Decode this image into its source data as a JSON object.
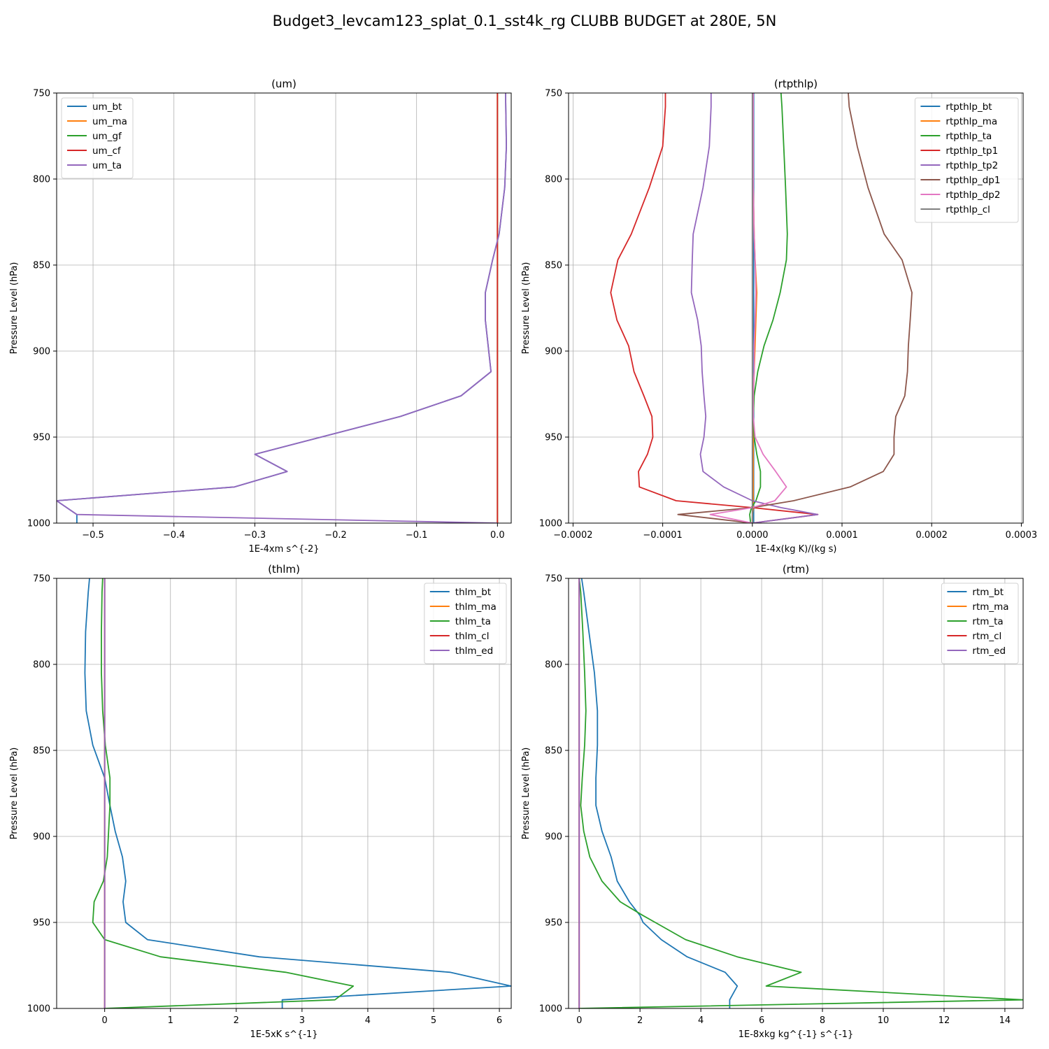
{
  "title": "Budget3_levcam123_splat_0.1_sst4k_rg CLUBB BUDGET at 280E, 5N",
  "chart_data": [
    {
      "type": "line",
      "title": "(um)",
      "xlabel": "1E-4xm s^{-2}",
      "ylabel": "Pressure Level (hPa)",
      "xlim": [
        -0.545,
        0.017
      ],
      "ylim": [
        1000,
        750
      ],
      "xticks": [
        -0.5,
        -0.4,
        -0.3,
        -0.2,
        -0.1,
        0.0
      ],
      "xtick_labels": [
        "−0.5",
        "−0.4",
        "−0.3",
        "−0.2",
        "−0.1",
        "0.0"
      ],
      "yticks": [
        750,
        800,
        850,
        900,
        950,
        1000
      ],
      "ytick_labels": [
        "750",
        "800",
        "850",
        "900",
        "950",
        "1000"
      ],
      "grid": true,
      "legend": "upper left",
      "levels": [
        750,
        781,
        805,
        832,
        847,
        866,
        882,
        912,
        926,
        938,
        960,
        970,
        979,
        987,
        995,
        1000
      ],
      "series": [
        {
          "name": "um_bt",
          "color": "#1f77b4",
          "x": [
            0.01,
            0.011,
            0.009,
            0.002,
            -0.006,
            -0.015,
            -0.015,
            -0.008,
            -0.045,
            -0.12,
            -0.3,
            -0.26,
            -0.325,
            -0.545,
            -0.52,
            -0.52
          ]
        },
        {
          "name": "um_ma",
          "color": "#ff7f0e",
          "x": [
            0,
            0,
            0,
            0,
            0,
            0,
            0,
            0,
            0,
            0,
            0,
            0,
            0,
            0,
            0,
            0
          ]
        },
        {
          "name": "um_gf",
          "color": "#2ca02c",
          "x": [
            0,
            0,
            0,
            0,
            0,
            0,
            0,
            0,
            0,
            0,
            0,
            0,
            0,
            0,
            0,
            0
          ]
        },
        {
          "name": "um_cf",
          "color": "#d62728",
          "x": [
            0,
            0,
            0,
            0,
            0,
            0,
            0,
            0,
            0,
            0,
            0,
            0,
            0,
            0,
            0,
            0
          ]
        },
        {
          "name": "um_ta",
          "color": "#9467bd",
          "x": [
            0.01,
            0.011,
            0.009,
            0.002,
            -0.006,
            -0.015,
            -0.015,
            -0.008,
            -0.045,
            -0.12,
            -0.3,
            -0.26,
            -0.325,
            -0.545,
            -0.52,
            0.0
          ]
        }
      ]
    },
    {
      "type": "line",
      "title": "(rtpthlp)",
      "xlabel": "1E-4x(kg K)/(kg s)",
      "ylabel": "Pressure Level (hPa)",
      "xlim": [
        -0.000205,
        0.000302
      ],
      "ylim": [
        1000,
        750
      ],
      "xticks": [
        -0.0002,
        -0.0001,
        0.0,
        0.0001,
        0.0002,
        0.0003
      ],
      "xtick_labels": [
        "−0.0002",
        "−0.0001",
        "0.0000",
        "0.0001",
        "0.0002",
        "0.0003"
      ],
      "yticks": [
        750,
        800,
        850,
        900,
        950,
        1000
      ],
      "ytick_labels": [
        "750",
        "800",
        "850",
        "900",
        "950",
        "1000"
      ],
      "grid": true,
      "legend": "upper right",
      "levels": [
        750,
        758,
        781,
        805,
        832,
        847,
        866,
        882,
        897,
        912,
        926,
        938,
        950,
        960,
        970,
        979,
        987,
        991,
        995,
        1000
      ],
      "series": [
        {
          "name": "rtpthlp_bt",
          "color": "#1f77b4",
          "x": [
            1.5e-06,
            1.5e-06,
            1.5e-06,
            1.5e-06,
            1.5e-06,
            1.5e-06,
            1.5e-06,
            1.5e-06,
            1.5e-06,
            1.5e-06,
            1.5e-06,
            1.5e-06,
            1.5e-06,
            1.5e-06,
            1.5e-06,
            1.5e-06,
            1.5e-06,
            1.5e-06,
            1.5e-06,
            1.5e-06
          ]
        },
        {
          "name": "rtpthlp_ma",
          "color": "#ff7f0e",
          "x": [
            1e-06,
            1e-06,
            1e-06,
            1e-06,
            2e-06,
            3e-06,
            5e-06,
            4e-06,
            3e-06,
            2e-06,
            1e-06,
            1e-06,
            1e-06,
            1e-06,
            1e-06,
            1e-06,
            1e-06,
            1e-06,
            0.0,
            0.0
          ]
        },
        {
          "name": "rtpthlp_ta",
          "color": "#2ca02c",
          "x": [
            3.2e-05,
            3.3e-05,
            3.5e-05,
            3.7e-05,
            3.9e-05,
            3.8e-05,
            3.1e-05,
            2.3e-05,
            1.3e-05,
            6e-06,
            2e-06,
            1e-06,
            2e-06,
            5e-06,
            9e-06,
            9e-06,
            4e-06,
            -1e-06,
            -3e-06,
            -2e-06
          ]
        },
        {
          "name": "rtpthlp_tp1",
          "color": "#d62728",
          "x": [
            -9.7e-05,
            -9.7e-05,
            -0.0001,
            -0.000115,
            -0.000135,
            -0.00015,
            -0.000158,
            -0.000151,
            -0.000138,
            -0.000132,
            -0.000121,
            -0.000112,
            -0.000111,
            -0.000117,
            -0.000127,
            -0.000126,
            -8.5e-05,
            0.0,
            7.3e-05,
            0.0
          ]
        },
        {
          "name": "rtpthlp_tp2",
          "color": "#9467bd",
          "x": [
            -4.6e-05,
            -4.6e-05,
            -4.8e-05,
            -5.5e-05,
            -6.6e-05,
            -6.7e-05,
            -6.8e-05,
            -6.1e-05,
            -5.7e-05,
            -5.6e-05,
            -5.4e-05,
            -5.2e-05,
            -5.4e-05,
            -5.8e-05,
            -5.5e-05,
            -3.2e-05,
            0.0,
            3.2e-05,
            7.3e-05,
            0.0
          ]
        },
        {
          "name": "rtpthlp_dp1",
          "color": "#8c564b",
          "x": [
            0.000107,
            0.000108,
            0.000117,
            0.000129,
            0.000147,
            0.000167,
            0.000178,
            0.000176,
            0.000174,
            0.000173,
            0.00017,
            0.00016,
            0.000158,
            0.000158,
            0.000146,
            0.000109,
            4.6e-05,
            0.0,
            -8.3e-05,
            0.0
          ]
        },
        {
          "name": "rtpthlp_dp2",
          "color": "#e377c2",
          "x": [
            1e-06,
            1e-06,
            1e-06,
            1e-06,
            2e-06,
            3e-06,
            4e-06,
            3e-06,
            2e-06,
            2e-06,
            1e-06,
            1e-06,
            3e-06,
            1.2e-05,
            2.6e-05,
            3.8e-05,
            2.5e-05,
            0.0,
            -4.7e-05,
            0.0
          ]
        },
        {
          "name": "rtpthlp_cl",
          "color": "#7f7f7f",
          "x": [
            0.0,
            0.0,
            0.0,
            0.0,
            0.0,
            0.0,
            0.0,
            0.0,
            0.0,
            0.0,
            0.0,
            0.0,
            0.0,
            0.0,
            0.0,
            0.0,
            0.0,
            0.0,
            0.0,
            0.0
          ]
        }
      ]
    },
    {
      "type": "line",
      "title": "(thlm)",
      "xlabel": "1E-5xK s^{-1}",
      "ylabel": "Pressure Level (hPa)",
      "xlim": [
        -0.73,
        6.18
      ],
      "ylim": [
        1000,
        750
      ],
      "xticks": [
        0,
        1,
        2,
        3,
        4,
        5,
        6
      ],
      "xtick_labels": [
        "0",
        "1",
        "2",
        "3",
        "4",
        "5",
        "6"
      ],
      "yticks": [
        750,
        800,
        850,
        900,
        950,
        1000
      ],
      "ytick_labels": [
        "750",
        "800",
        "850",
        "900",
        "950",
        "1000"
      ],
      "grid": true,
      "legend": "upper right",
      "levels": [
        750,
        758,
        781,
        805,
        827,
        847,
        866,
        882,
        897,
        912,
        926,
        938,
        950,
        960,
        970,
        979,
        987,
        995,
        1000
      ],
      "series": [
        {
          "name": "thlm_bt",
          "color": "#1f77b4",
          "x": [
            -0.23,
            -0.25,
            -0.29,
            -0.3,
            -0.28,
            -0.18,
            0.0,
            0.08,
            0.16,
            0.27,
            0.32,
            0.28,
            0.32,
            0.65,
            2.35,
            5.25,
            6.18,
            2.7,
            2.7
          ]
        },
        {
          "name": "thlm_ma",
          "color": "#ff7f0e",
          "x": [
            0,
            0,
            0,
            0,
            0,
            0,
            0,
            0,
            0,
            0,
            0,
            0,
            0,
            0,
            0,
            0,
            0,
            0,
            0
          ]
        },
        {
          "name": "thlm_ta",
          "color": "#2ca02c",
          "x": [
            -0.03,
            -0.04,
            -0.05,
            -0.05,
            -0.03,
            0.01,
            0.08,
            0.08,
            0.06,
            0.04,
            -0.02,
            -0.16,
            -0.18,
            0.0,
            0.85,
            2.75,
            3.78,
            3.5,
            0.0
          ]
        },
        {
          "name": "thlm_cl",
          "color": "#d62728",
          "x": [
            0,
            0,
            0,
            0,
            0,
            0,
            0,
            0,
            0,
            0,
            0,
            0,
            0,
            0,
            0,
            0,
            0,
            0,
            0
          ]
        },
        {
          "name": "thlm_ed",
          "color": "#9467bd",
          "x": [
            0,
            0,
            0,
            0,
            0,
            0,
            0,
            0,
            0,
            0,
            0,
            0,
            0,
            0,
            0,
            0,
            0,
            0,
            0
          ]
        }
      ]
    },
    {
      "type": "line",
      "title": "(rtm)",
      "xlabel": "1E-8xkg kg^{-1} s^{-1}",
      "ylabel": "Pressure Level (hPa)",
      "xlim": [
        -0.35,
        14.6
      ],
      "ylim": [
        1000,
        750
      ],
      "xticks": [
        0,
        2,
        4,
        6,
        8,
        10,
        12,
        14
      ],
      "xtick_labels": [
        "0",
        "2",
        "4",
        "6",
        "8",
        "10",
        "12",
        "14"
      ],
      "yticks": [
        750,
        800,
        850,
        900,
        950,
        1000
      ],
      "ytick_labels": [
        "750",
        "800",
        "850",
        "900",
        "950",
        "1000"
      ],
      "grid": true,
      "legend": "upper right",
      "levels": [
        750,
        758,
        781,
        805,
        827,
        847,
        866,
        882,
        897,
        912,
        926,
        938,
        946,
        950,
        960,
        970,
        979,
        987,
        995,
        1000
      ],
      "series": [
        {
          "name": "rtm_bt",
          "color": "#1f77b4",
          "x": [
            0.08,
            0.15,
            0.32,
            0.5,
            0.6,
            0.6,
            0.55,
            0.55,
            0.75,
            1.05,
            1.25,
            1.65,
            2.0,
            2.1,
            2.7,
            3.55,
            4.8,
            5.2,
            4.95,
            4.95
          ]
        },
        {
          "name": "rtm_ma",
          "color": "#ff7f0e",
          "x": [
            0,
            0,
            0,
            0,
            0,
            0,
            0,
            0,
            0,
            0,
            0,
            0,
            0,
            0,
            0,
            0,
            0,
            0,
            0,
            0
          ]
        },
        {
          "name": "rtm_ta",
          "color": "#2ca02c",
          "x": [
            0.0,
            0.05,
            0.12,
            0.18,
            0.22,
            0.18,
            0.1,
            0.05,
            0.15,
            0.35,
            0.75,
            1.35,
            2.1,
            2.5,
            3.5,
            5.2,
            7.3,
            6.15,
            14.6,
            0.0
          ]
        },
        {
          "name": "rtm_cl",
          "color": "#d62728",
          "x": [
            0,
            0,
            0,
            0,
            0,
            0,
            0,
            0,
            0,
            0,
            0,
            0,
            0,
            0,
            0,
            0,
            0,
            0,
            0,
            0
          ]
        },
        {
          "name": "rtm_ed",
          "color": "#9467bd",
          "x": [
            0,
            0,
            0,
            0,
            0,
            0,
            0,
            0,
            0,
            0,
            0,
            0,
            0,
            0,
            0,
            0,
            0,
            0,
            0,
            0
          ]
        }
      ]
    }
  ]
}
